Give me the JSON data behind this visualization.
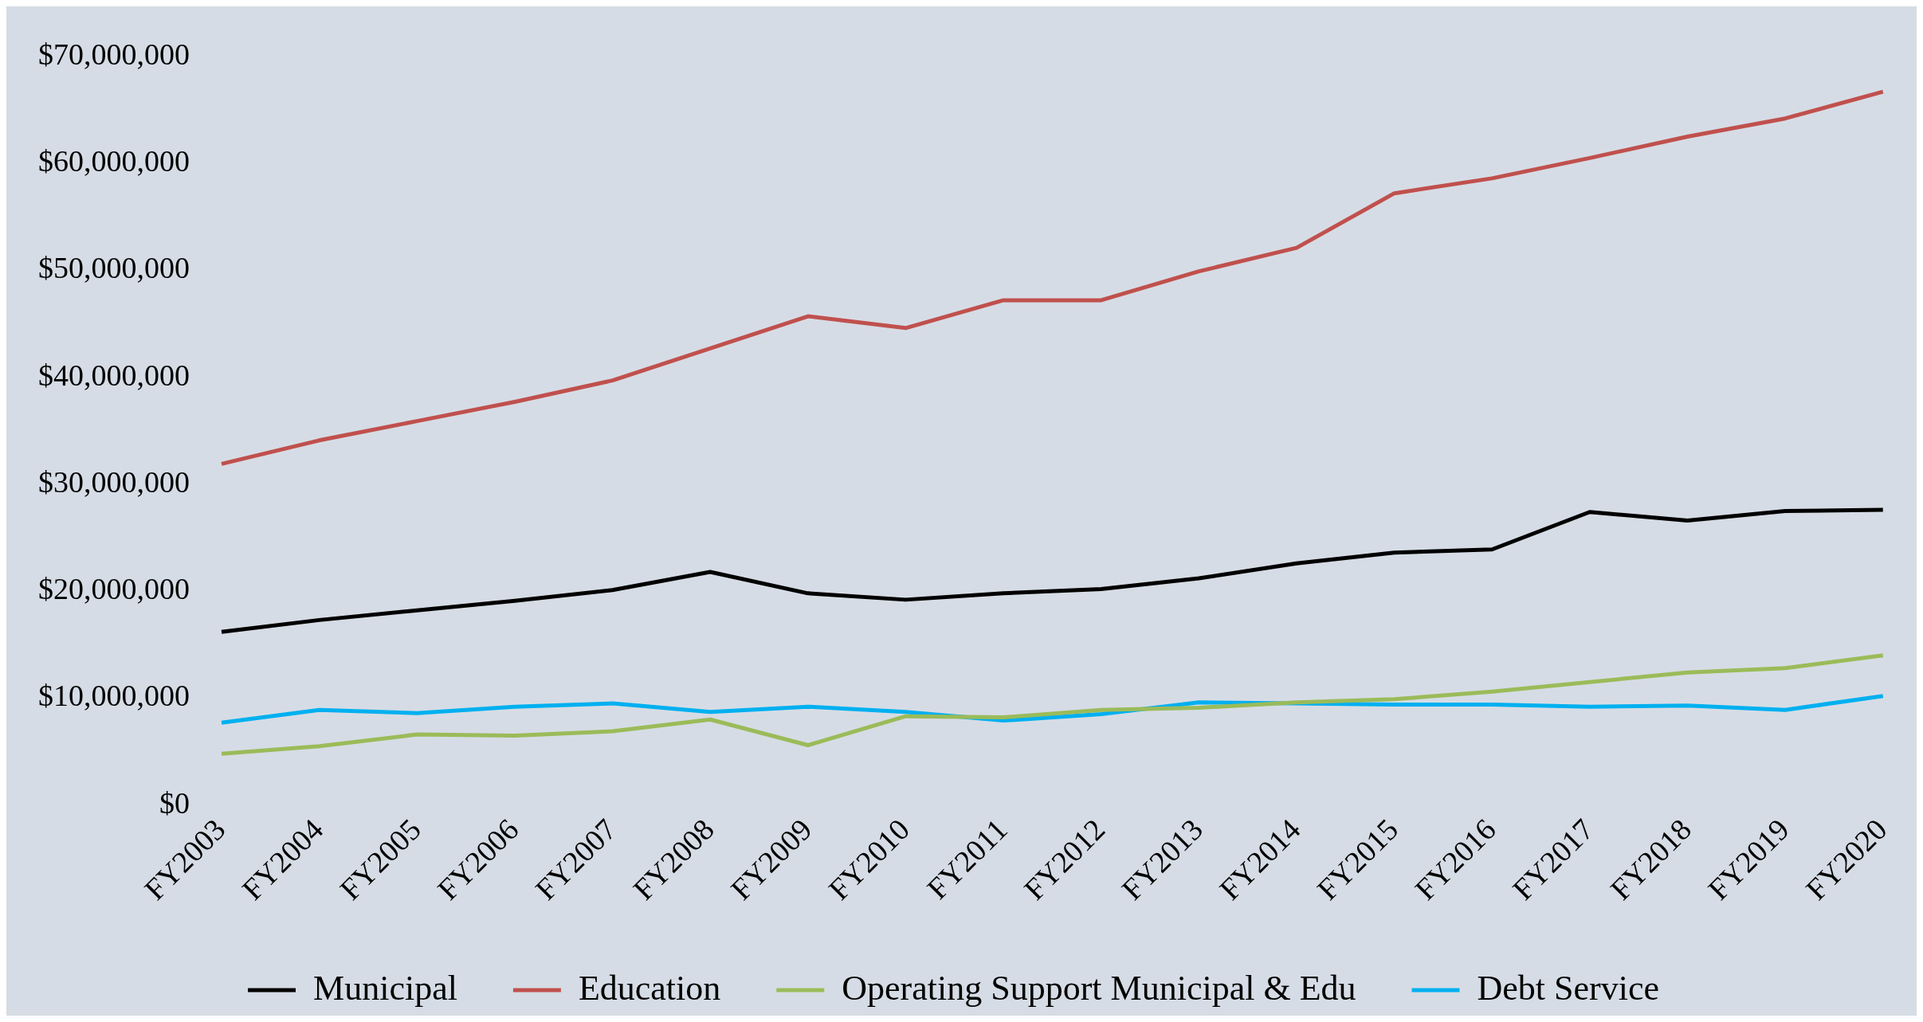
{
  "chart_data": {
    "type": "line",
    "categories": [
      "FY2003",
      "FY2004",
      "FY2005",
      "FY2006",
      "FY2007",
      "FY2008",
      "FY2009",
      "FY2010",
      "FY2011",
      "FY2012",
      "FY2013",
      "FY2014",
      "FY2015",
      "FY2016",
      "FY2017",
      "FY2018",
      "FY2019",
      "FY2020"
    ],
    "series": [
      {
        "name": "Municipal",
        "color": "#000000",
        "values": [
          16200000,
          17300000,
          18200000,
          19100000,
          20100000,
          21800000,
          19800000,
          19200000,
          19800000,
          20200000,
          21200000,
          22600000,
          23600000,
          23900000,
          27400000,
          26600000,
          27500000,
          27600000
        ]
      },
      {
        "name": "Education",
        "color": "#c0504d",
        "values": [
          31900000,
          34100000,
          35900000,
          37700000,
          39700000,
          42700000,
          45700000,
          44600000,
          47200000,
          47200000,
          49900000,
          52100000,
          57200000,
          58600000,
          60500000,
          62500000,
          64200000,
          66700000
        ]
      },
      {
        "name": "Operating Support Municipal & Edu",
        "color": "#9bbb59",
        "values": [
          4800000,
          5500000,
          6600000,
          6500000,
          6900000,
          8000000,
          5600000,
          8300000,
          8200000,
          8900000,
          9100000,
          9600000,
          9900000,
          10600000,
          11500000,
          12400000,
          12800000,
          14000000
        ]
      },
      {
        "name": "Debt Service",
        "color": "#00b0f0",
        "values": [
          7700000,
          8900000,
          8600000,
          9200000,
          9500000,
          8700000,
          9200000,
          8700000,
          7900000,
          8500000,
          9600000,
          9500000,
          9400000,
          9400000,
          9200000,
          9300000,
          8900000,
          10200000
        ]
      }
    ],
    "ylim": [
      0,
      70000000
    ],
    "yticks": [
      {
        "value": 0,
        "label": "$0"
      },
      {
        "value": 10000000,
        "label": "$10,000,000"
      },
      {
        "value": 20000000,
        "label": "$20,000,000"
      },
      {
        "value": 30000000,
        "label": "$30,000,000"
      },
      {
        "value": 40000000,
        "label": "$40,000,000"
      },
      {
        "value": 50000000,
        "label": "$50,000,000"
      },
      {
        "value": 60000000,
        "label": "$60,000,000"
      },
      {
        "value": 70000000,
        "label": "$70,000,000"
      }
    ],
    "grid": false,
    "legend": "bottom",
    "marker": "none",
    "line_style": "solid"
  }
}
